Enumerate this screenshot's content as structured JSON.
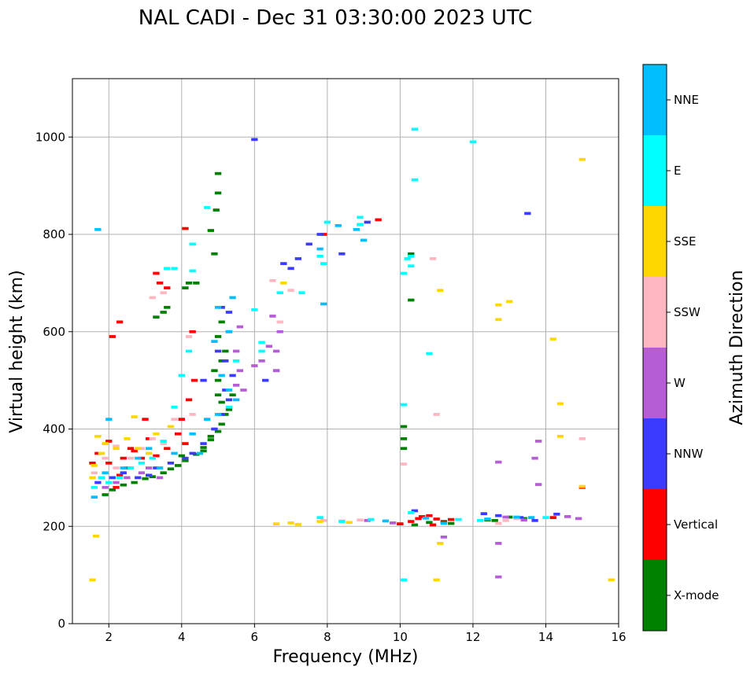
{
  "chart_data": {
    "type": "scatter",
    "title": "NAL CADI - Dec 31 03:30:00 2023 UTC",
    "xlabel": "Frequency (MHz)",
    "ylabel": "Virtual height (km)",
    "xlim": [
      1,
      16
    ],
    "ylim": [
      0,
      1120
    ],
    "xticks": [
      2,
      4,
      6,
      8,
      10,
      12,
      14,
      16
    ],
    "yticks": [
      0,
      200,
      400,
      600,
      800,
      1000
    ],
    "grid": true,
    "cell": {
      "df": 0.18,
      "dh": 6
    },
    "colorbar": {
      "label": "Azimuth Direction",
      "categories": [
        {
          "name": "X-mode",
          "color": "#008000"
        },
        {
          "name": "Vertical",
          "color": "#ff0000"
        },
        {
          "name": "NNW",
          "color": "#3b3bff"
        },
        {
          "name": "W",
          "color": "#b65cd6"
        },
        {
          "name": "SSW",
          "color": "#ffb6c1"
        },
        {
          "name": "SSE",
          "color": "#ffd700"
        },
        {
          "name": "E",
          "color": "#00ffff"
        },
        {
          "name": "NNE",
          "color": "#00bfff"
        }
      ]
    },
    "series": [
      {
        "name": "X-mode",
        "points": [
          [
            1.9,
            265
          ],
          [
            2.1,
            275
          ],
          [
            2.4,
            285
          ],
          [
            2.7,
            290
          ],
          [
            3.0,
            298
          ],
          [
            3.2,
            302
          ],
          [
            3.5,
            310
          ],
          [
            3.7,
            318
          ],
          [
            3.9,
            325
          ],
          [
            4.1,
            335
          ],
          [
            4.4,
            348
          ],
          [
            4.6,
            362
          ],
          [
            4.8,
            378
          ],
          [
            5.0,
            395
          ],
          [
            5.1,
            410
          ],
          [
            5.2,
            430
          ],
          [
            5.1,
            455
          ],
          [
            5.0,
            470
          ],
          [
            5.0,
            500
          ],
          [
            4.9,
            520
          ],
          [
            5.1,
            540
          ],
          [
            5.2,
            560
          ],
          [
            5.0,
            590
          ],
          [
            5.3,
            600
          ],
          [
            5.1,
            620
          ],
          [
            4.1,
            690
          ],
          [
            4.2,
            700
          ],
          [
            3.5,
            640
          ],
          [
            3.3,
            630
          ],
          [
            3.6,
            650
          ],
          [
            4.4,
            700
          ],
          [
            4.9,
            760
          ],
          [
            4.8,
            808
          ],
          [
            4.95,
            850
          ],
          [
            5.0,
            885
          ],
          [
            5.0,
            925
          ],
          [
            10.1,
            360
          ],
          [
            10.1,
            380
          ],
          [
            10.1,
            405
          ],
          [
            10.3,
            665
          ],
          [
            10.3,
            760
          ],
          [
            10.0,
            205
          ],
          [
            10.4,
            203
          ],
          [
            10.8,
            208
          ],
          [
            11.2,
            210
          ],
          [
            11.4,
            206
          ],
          [
            12.6,
            212
          ],
          [
            13.4,
            216
          ],
          [
            13.0,
            219
          ],
          [
            12.4,
            213
          ],
          [
            4.0,
            345
          ],
          [
            4.6,
            355
          ],
          [
            4.8,
            385
          ],
          [
            5.3,
            440
          ],
          [
            5.4,
            470
          ]
        ]
      },
      {
        "name": "Vertical",
        "points": [
          [
            1.55,
            330
          ],
          [
            1.7,
            350
          ],
          [
            1.8,
            300
          ],
          [
            2.0,
            330
          ],
          [
            2.2,
            280
          ],
          [
            2.5,
            320
          ],
          [
            2.6,
            360
          ],
          [
            2.9,
            340
          ],
          [
            3.1,
            380
          ],
          [
            3.3,
            345
          ],
          [
            3.6,
            360
          ],
          [
            3.9,
            390
          ],
          [
            4.0,
            420
          ],
          [
            4.1,
            370
          ],
          [
            4.2,
            460
          ],
          [
            3.3,
            720
          ],
          [
            3.6,
            690
          ],
          [
            4.1,
            812
          ],
          [
            4.3,
            600
          ],
          [
            2.1,
            590
          ],
          [
            2.3,
            620
          ],
          [
            3.4,
            700
          ],
          [
            4.35,
            500
          ],
          [
            2.0,
            375
          ],
          [
            2.3,
            305
          ],
          [
            10.0,
            205
          ],
          [
            10.3,
            210
          ],
          [
            10.5,
            216
          ],
          [
            10.8,
            222
          ],
          [
            11.0,
            215
          ],
          [
            11.2,
            208
          ],
          [
            11.4,
            214
          ],
          [
            10.6,
            220
          ],
          [
            10.9,
            203
          ],
          [
            14.2,
            218
          ],
          [
            15.0,
            280
          ],
          [
            9.4,
            830
          ],
          [
            7.9,
            800
          ],
          [
            3.0,
            420
          ],
          [
            2.7,
            355
          ],
          [
            2.4,
            340
          ]
        ]
      },
      {
        "name": "NNW",
        "points": [
          [
            1.7,
            290
          ],
          [
            2.1,
            300
          ],
          [
            2.4,
            310
          ],
          [
            2.8,
            300
          ],
          [
            3.1,
            305
          ],
          [
            3.3,
            320
          ],
          [
            3.7,
            330
          ],
          [
            4.1,
            340
          ],
          [
            4.3,
            350
          ],
          [
            4.6,
            370
          ],
          [
            4.9,
            400
          ],
          [
            5.1,
            430
          ],
          [
            5.3,
            460
          ],
          [
            5.4,
            510
          ],
          [
            5.2,
            540
          ],
          [
            5.0,
            560
          ],
          [
            5.3,
            640
          ],
          [
            5.1,
            650
          ],
          [
            6.3,
            500
          ],
          [
            6.6,
            520
          ],
          [
            6.8,
            740
          ],
          [
            7.0,
            730
          ],
          [
            7.2,
            750
          ],
          [
            7.5,
            780
          ],
          [
            7.8,
            800
          ],
          [
            8.4,
            760
          ],
          [
            8.9,
            820
          ],
          [
            9.1,
            825
          ],
          [
            13.5,
            843
          ],
          [
            6.0,
            995
          ],
          [
            12.3,
            226
          ],
          [
            12.7,
            222
          ],
          [
            13.3,
            218
          ],
          [
            13.7,
            212
          ],
          [
            10.4,
            232
          ],
          [
            14.3,
            225
          ],
          [
            4.6,
            500
          ],
          [
            5.2,
            480
          ]
        ]
      },
      {
        "name": "W",
        "points": [
          [
            1.9,
            280
          ],
          [
            2.2,
            290
          ],
          [
            2.5,
            300
          ],
          [
            2.9,
            310
          ],
          [
            3.1,
            320
          ],
          [
            3.4,
            300
          ],
          [
            5.5,
            490
          ],
          [
            5.6,
            520
          ],
          [
            5.5,
            560
          ],
          [
            5.6,
            610
          ],
          [
            6.0,
            530
          ],
          [
            6.4,
            570
          ],
          [
            6.6,
            560
          ],
          [
            6.6,
            520
          ],
          [
            6.7,
            600
          ],
          [
            6.5,
            632
          ],
          [
            12.7,
            332
          ],
          [
            12.7,
            165
          ],
          [
            12.7,
            96
          ],
          [
            13.7,
            340
          ],
          [
            13.8,
            375
          ],
          [
            13.8,
            286
          ],
          [
            13.4,
            213
          ],
          [
            12.9,
            219
          ],
          [
            14.6,
            220
          ],
          [
            14.9,
            216
          ],
          [
            11.2,
            178
          ],
          [
            9.1,
            212
          ],
          [
            9.8,
            207
          ],
          [
            5.7,
            480
          ],
          [
            6.2,
            540
          ]
        ]
      },
      {
        "name": "SSW",
        "points": [
          [
            1.6,
            310
          ],
          [
            1.9,
            340
          ],
          [
            2.2,
            320
          ],
          [
            2.6,
            340
          ],
          [
            2.9,
            360
          ],
          [
            3.2,
            380
          ],
          [
            3.5,
            370
          ],
          [
            3.8,
            420
          ],
          [
            3.2,
            670
          ],
          [
            3.5,
            680
          ],
          [
            4.2,
            590
          ],
          [
            6.7,
            620
          ],
          [
            6.5,
            705
          ],
          [
            7.0,
            685
          ],
          [
            11.0,
            430
          ],
          [
            10.9,
            750
          ],
          [
            12.7,
            206
          ],
          [
            12.9,
            212
          ],
          [
            13.2,
            216
          ],
          [
            15.0,
            380
          ],
          [
            10.1,
            328
          ],
          [
            8.9,
            213
          ],
          [
            8.4,
            211
          ],
          [
            7.9,
            212
          ],
          [
            2.2,
            365
          ],
          [
            4.3,
            430
          ]
        ]
      },
      {
        "name": "SSE",
        "points": [
          [
            1.55,
            300
          ],
          [
            1.6,
            325
          ],
          [
            1.7,
            385
          ],
          [
            1.8,
            350
          ],
          [
            1.9,
            370
          ],
          [
            2.2,
            360
          ],
          [
            2.5,
            380
          ],
          [
            2.8,
            360
          ],
          [
            3.1,
            350
          ],
          [
            3.3,
            390
          ],
          [
            3.7,
            405
          ],
          [
            2.7,
            425
          ],
          [
            1.65,
            180
          ],
          [
            1.55,
            90
          ],
          [
            6.6,
            205
          ],
          [
            7.0,
            207
          ],
          [
            7.2,
            204
          ],
          [
            8.6,
            208
          ],
          [
            7.8,
            210
          ],
          [
            11.1,
            685
          ],
          [
            11.1,
            165
          ],
          [
            11.0,
            90
          ],
          [
            12.7,
            625
          ],
          [
            12.7,
            655
          ],
          [
            13.0,
            662
          ],
          [
            14.2,
            585
          ],
          [
            14.4,
            452
          ],
          [
            14.4,
            385
          ],
          [
            15.0,
            954
          ],
          [
            15.8,
            90
          ],
          [
            15.0,
            282
          ],
          [
            6.8,
            700
          ]
        ]
      },
      {
        "name": "E",
        "points": [
          [
            1.6,
            280
          ],
          [
            1.8,
            300
          ],
          [
            2.0,
            290
          ],
          [
            2.3,
            300
          ],
          [
            2.6,
            320
          ],
          [
            2.9,
            330
          ],
          [
            3.2,
            340
          ],
          [
            3.5,
            375
          ],
          [
            3.8,
            445
          ],
          [
            4.0,
            510
          ],
          [
            4.2,
            560
          ],
          [
            4.3,
            725
          ],
          [
            4.3,
            780
          ],
          [
            3.6,
            730
          ],
          [
            4.7,
            855
          ],
          [
            5.3,
            445
          ],
          [
            5.5,
            540
          ],
          [
            6.2,
            560
          ],
          [
            6.2,
            578
          ],
          [
            6.7,
            680
          ],
          [
            7.3,
            680
          ],
          [
            7.8,
            755
          ],
          [
            7.9,
            740
          ],
          [
            8.0,
            825
          ],
          [
            8.9,
            820
          ],
          [
            8.9,
            835
          ],
          [
            10.1,
            450
          ],
          [
            10.2,
            750
          ],
          [
            10.3,
            755
          ],
          [
            10.3,
            735
          ],
          [
            10.1,
            720
          ],
          [
            10.4,
            912
          ],
          [
            10.4,
            1016
          ],
          [
            10.1,
            90
          ],
          [
            10.8,
            555
          ],
          [
            12.0,
            990
          ],
          [
            7.8,
            218
          ],
          [
            8.4,
            210
          ],
          [
            9.2,
            214
          ],
          [
            10.3,
            228
          ],
          [
            11.6,
            214
          ],
          [
            12.2,
            212
          ],
          [
            14.0,
            218
          ],
          [
            3.8,
            730
          ],
          [
            6.0,
            645
          ]
        ]
      },
      {
        "name": "NNE",
        "points": [
          [
            1.6,
            260
          ],
          [
            1.9,
            310
          ],
          [
            2.4,
            320
          ],
          [
            2.8,
            340
          ],
          [
            3.1,
            360
          ],
          [
            3.4,
            320
          ],
          [
            3.8,
            350
          ],
          [
            4.3,
            390
          ],
          [
            4.7,
            420
          ],
          [
            5.0,
            430
          ],
          [
            5.3,
            480
          ],
          [
            5.5,
            460
          ],
          [
            5.1,
            510
          ],
          [
            4.9,
            580
          ],
          [
            5.3,
            600
          ],
          [
            5.4,
            670
          ],
          [
            7.8,
            770
          ],
          [
            8.3,
            818
          ],
          [
            9.0,
            788
          ],
          [
            8.8,
            810
          ],
          [
            12.4,
            215
          ],
          [
            13.2,
            219
          ],
          [
            13.6,
            218
          ],
          [
            11.2,
            206
          ],
          [
            10.7,
            217
          ],
          [
            9.6,
            211
          ],
          [
            7.9,
            657
          ],
          [
            5.0,
            650
          ],
          [
            2.0,
            420
          ],
          [
            4.5,
            350
          ],
          [
            1.7,
            810
          ]
        ]
      }
    ]
  }
}
